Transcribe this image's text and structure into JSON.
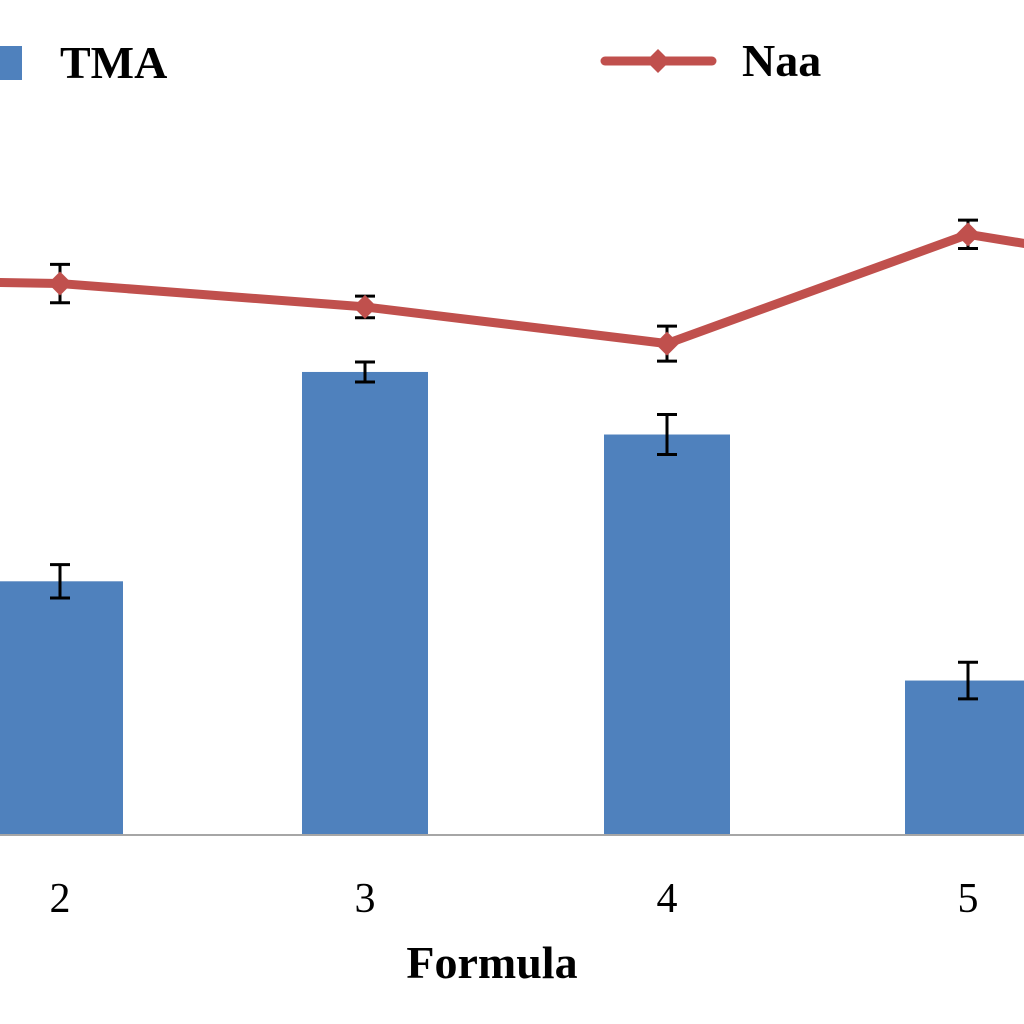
{
  "chart_data": {
    "type": "bar",
    "xlabel": "Formula",
    "categories": [
      "2",
      "3",
      "4",
      "5"
    ],
    "series": [
      {
        "name": "TMA",
        "kind": "bar",
        "color": "#4f81bd",
        "values": [
          30.3,
          55.4,
          47.9,
          18.4
        ],
        "errors": [
          2.0,
          1.2,
          2.4,
          2.2
        ]
      },
      {
        "name": "Naa",
        "kind": "line",
        "color": "#c0504d",
        "values": [
          66.0,
          63.2,
          58.8,
          71.9
        ],
        "errors": [
          2.3,
          1.3,
          2.1,
          1.7
        ]
      }
    ],
    "ylim": [
      0,
      100
    ],
    "partial_series_edge": {
      "naa_right_edge": 70.7
    },
    "grid": false,
    "legend_position": "top"
  }
}
